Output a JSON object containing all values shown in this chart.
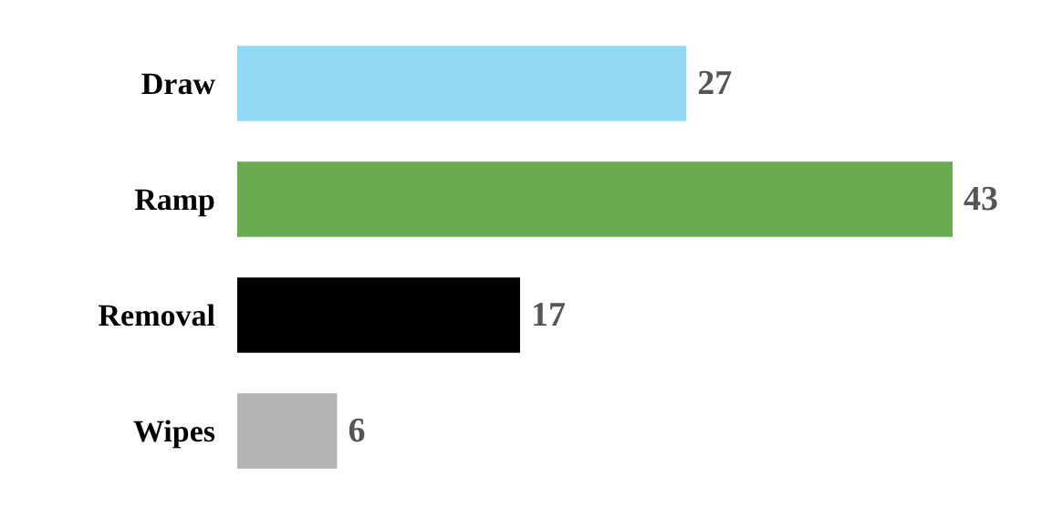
{
  "chart_data": {
    "type": "bar",
    "orientation": "horizontal",
    "categories": [
      "Draw",
      "Ramp",
      "Removal",
      "Wipes"
    ],
    "values": [
      27,
      43,
      17,
      6
    ],
    "colors": [
      "#93d9f5",
      "#6aaa50",
      "#000000",
      "#b3b3b3"
    ],
    "data_labels": true
  }
}
